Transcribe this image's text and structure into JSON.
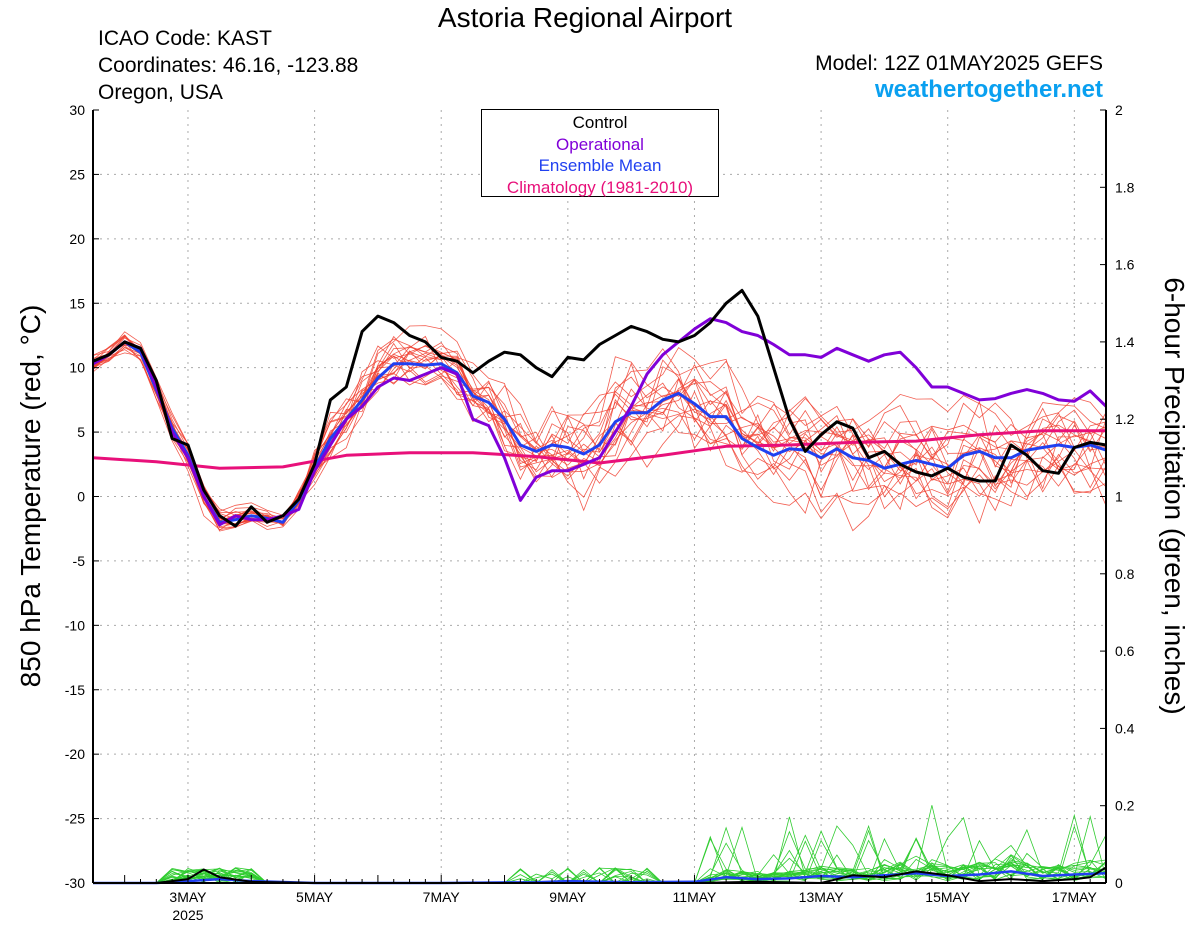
{
  "header": {
    "title": "Astoria Regional Airport",
    "icao": "ICAO Code: KAST",
    "coordinates": "Coordinates: 46.16, -123.88",
    "region": "Oregon, USA",
    "model": "Model: 12Z 01MAY2025 GEFS",
    "website": "weathertogether.net"
  },
  "legend": {
    "control": "Control",
    "operational": "Operational",
    "ensemble_mean": "Ensemble Mean",
    "climatology": "Climatology (1981-2010)"
  },
  "colors": {
    "control": "#000000",
    "operational": "#8000d8",
    "ensemble_mean": "#2040f0",
    "climatology": "#e8107a",
    "members": "#f04030",
    "precip": "#30cc30",
    "website": "#0aa0f0"
  },
  "chart_data": {
    "type": "line",
    "ylabel": "850 hPa Temperature (red, °C)",
    "y2label": "6-hour Precipitation (green, inches)",
    "ylim": [
      -30,
      30
    ],
    "y2lim": [
      0,
      2
    ],
    "yticks": [
      30,
      25,
      20,
      15,
      10,
      5,
      0,
      -5,
      -10,
      -15,
      -20,
      -25,
      -30
    ],
    "y2ticks": [
      "2",
      "1.8",
      "1.6",
      "1.4",
      "1.2",
      "1",
      "0.8",
      "0.6",
      "0.4",
      "0.2",
      "0"
    ],
    "xlim_day": [
      1.5,
      17.5
    ],
    "x_ticks": [
      {
        "day": 3,
        "label": "3MAY",
        "sub": "2025"
      },
      {
        "day": 5,
        "label": "5MAY"
      },
      {
        "day": 7,
        "label": "7MAY"
      },
      {
        "day": 9,
        "label": "9MAY"
      },
      {
        "day": 11,
        "label": "11MAY"
      },
      {
        "day": 13,
        "label": "13MAY"
      },
      {
        "day": 15,
        "label": "15MAY"
      },
      {
        "day": 17,
        "label": "17MAY"
      }
    ],
    "grid": true,
    "series": [
      {
        "key": "climatology",
        "name": "Climatology (1981-2010)",
        "axis": "left",
        "x": [
          1.5,
          2.5,
          3.5,
          4.5,
          5.5,
          6.5,
          7.5,
          8.5,
          9.5,
          10.5,
          11.5,
          12.5,
          13.5,
          14.5,
          15.5,
          16.5,
          17.5
        ],
        "y": [
          3.0,
          2.7,
          2.2,
          2.3,
          3.2,
          3.4,
          3.4,
          3.1,
          2.6,
          3.2,
          3.9,
          4.0,
          4.2,
          4.3,
          4.8,
          5.1,
          5.1
        ]
      },
      {
        "key": "ensemble_mean",
        "name": "Ensemble Mean",
        "axis": "left",
        "x": [
          1.5,
          1.75,
          2.0,
          2.25,
          2.5,
          2.75,
          3.0,
          3.25,
          3.5,
          3.75,
          4.0,
          4.25,
          4.5,
          4.75,
          5.0,
          5.25,
          5.5,
          5.75,
          6.0,
          6.25,
          6.5,
          6.75,
          7.0,
          7.25,
          7.5,
          7.75,
          8.0,
          8.25,
          8.5,
          8.75,
          9.0,
          9.25,
          9.5,
          9.75,
          10.0,
          10.25,
          10.5,
          10.75,
          11.0,
          11.25,
          11.5,
          11.75,
          12.0,
          12.25,
          12.5,
          12.75,
          13.0,
          13.25,
          13.5,
          13.75,
          14.0,
          14.25,
          14.5,
          14.75,
          15.0,
          15.25,
          15.5,
          15.75,
          16.0,
          16.25,
          16.5,
          16.75,
          17.0,
          17.25,
          17.5
        ],
        "y": [
          10.3,
          11.0,
          12.0,
          11.2,
          8.3,
          5.3,
          3.2,
          0.0,
          -2.0,
          -1.8,
          -1.5,
          -1.7,
          -2.0,
          -0.3,
          2.2,
          4.5,
          6.0,
          7.5,
          9.2,
          10.3,
          10.3,
          10.2,
          10.3,
          9.6,
          7.8,
          7.3,
          6.0,
          4.0,
          3.5,
          4.0,
          3.8,
          3.3,
          4.0,
          5.8,
          6.5,
          6.5,
          7.5,
          8.0,
          7.2,
          6.2,
          6.2,
          4.5,
          3.8,
          3.2,
          3.7,
          3.6,
          3.0,
          3.7,
          3.0,
          2.8,
          2.2,
          2.5,
          2.8,
          2.5,
          2.2,
          3.2,
          3.5,
          3.0,
          3.0,
          3.6,
          3.8,
          4.0,
          3.8,
          4.0,
          3.6
        ]
      },
      {
        "key": "operational",
        "name": "Operational",
        "axis": "left",
        "x": [
          1.5,
          1.75,
          2.0,
          2.25,
          2.5,
          2.75,
          3.0,
          3.25,
          3.5,
          3.75,
          4.0,
          4.25,
          4.5,
          4.75,
          5.0,
          5.25,
          5.5,
          5.75,
          6.0,
          6.25,
          6.5,
          6.75,
          7.0,
          7.25,
          7.5,
          7.75,
          8.0,
          8.25,
          8.5,
          8.75,
          9.0,
          9.25,
          9.5,
          9.75,
          10.0,
          10.25,
          10.5,
          10.75,
          11.0,
          11.25,
          11.5,
          11.75,
          12.0,
          12.25,
          12.5,
          12.75,
          13.0,
          13.25,
          13.5,
          13.75,
          14.0,
          14.25,
          14.5,
          14.75,
          15.0,
          15.25,
          15.5,
          15.75,
          16.0,
          16.25,
          16.5,
          16.75,
          17.0,
          17.25,
          17.5
        ],
        "y": [
          10.3,
          11.0,
          12.0,
          11.5,
          8.5,
          5.0,
          3.0,
          0.0,
          -2.2,
          -1.5,
          -1.8,
          -1.8,
          -1.5,
          -1.0,
          2.0,
          4.0,
          6.0,
          7.0,
          8.5,
          9.2,
          9.0,
          9.5,
          10.0,
          9.5,
          6.0,
          5.5,
          3.0,
          -0.3,
          1.5,
          2.0,
          2.0,
          2.5,
          3.0,
          5.0,
          7.0,
          9.5,
          11.0,
          12.0,
          13.0,
          13.8,
          13.5,
          12.8,
          12.5,
          11.8,
          11.0,
          11.0,
          10.8,
          11.5,
          11.0,
          10.5,
          11.0,
          11.2,
          10.0,
          8.5,
          8.5,
          8.0,
          7.5,
          7.6,
          8.0,
          8.3,
          8.0,
          7.5,
          7.4,
          8.2,
          7.0
        ]
      },
      {
        "key": "control",
        "name": "Control",
        "axis": "left",
        "x": [
          1.5,
          1.75,
          2.0,
          2.25,
          2.5,
          2.75,
          3.0,
          3.25,
          3.5,
          3.75,
          4.0,
          4.25,
          4.5,
          4.75,
          5.0,
          5.25,
          5.5,
          5.75,
          6.0,
          6.25,
          6.5,
          6.75,
          7.0,
          7.25,
          7.5,
          7.75,
          8.0,
          8.25,
          8.5,
          8.75,
          9.0,
          9.25,
          9.5,
          9.75,
          10.0,
          10.25,
          10.5,
          10.75,
          11.0,
          11.25,
          11.5,
          11.75,
          12.0,
          12.25,
          12.5,
          12.75,
          13.0,
          13.25,
          13.5,
          13.75,
          14.0,
          14.25,
          14.5,
          14.75,
          15.0,
          15.25,
          15.5,
          15.75,
          16.0,
          16.25,
          16.5,
          16.75,
          17.0,
          17.25,
          17.5
        ],
        "y": [
          10.5,
          11.0,
          12.0,
          11.5,
          9.0,
          4.5,
          4.0,
          0.5,
          -1.5,
          -2.3,
          -0.8,
          -2.0,
          -1.5,
          -0.2,
          2.5,
          7.5,
          8.5,
          12.8,
          14.0,
          13.5,
          12.5,
          12.0,
          10.8,
          10.5,
          9.6,
          10.5,
          11.2,
          11.0,
          10.0,
          9.3,
          10.8,
          10.6,
          11.8,
          12.5,
          13.2,
          12.8,
          12.2,
          12.0,
          12.5,
          13.5,
          15.0,
          16.0,
          14.0,
          10.0,
          6.0,
          3.5,
          4.8,
          5.8,
          5.3,
          3.0,
          3.5,
          2.5,
          1.9,
          1.6,
          2.2,
          1.5,
          1.2,
          1.2,
          4.0,
          3.2,
          2.0,
          1.8,
          3.8,
          4.2,
          4.0
        ]
      },
      {
        "key": "precip_mean",
        "name": "Ensemble Mean",
        "axis": "right",
        "x": [
          1.5,
          2.5,
          3.0,
          3.5,
          4.0,
          5.0,
          7.0,
          8.5,
          9.0,
          10.0,
          11.0,
          11.5,
          12.0,
          12.5,
          13.0,
          13.5,
          14.0,
          14.5,
          15.0,
          15.5,
          16.0,
          16.5,
          17.0,
          17.5
        ],
        "y": [
          0,
          0,
          0.005,
          0.01,
          0.005,
          0,
          0,
          0.002,
          0.005,
          0.002,
          0.003,
          0.015,
          0.01,
          0.012,
          0.018,
          0.015,
          0.02,
          0.025,
          0.018,
          0.022,
          0.03,
          0.018,
          0.022,
          0.025
        ]
      },
      {
        "key": "precip_control",
        "name": "Control",
        "axis": "right",
        "x": [
          1.5,
          2.5,
          2.75,
          3.0,
          3.25,
          3.5,
          4.0,
          5.0,
          9.0,
          11.0,
          12.0,
          13.0,
          13.5,
          14.0,
          14.5,
          15.0,
          15.5,
          16.0,
          16.5,
          17.0,
          17.25,
          17.5
        ],
        "y": [
          0,
          0,
          0.005,
          0.01,
          0.035,
          0.015,
          0.003,
          0,
          0,
          0,
          0.003,
          0,
          0.02,
          0.015,
          0.03,
          0.02,
          0.005,
          0.01,
          0.005,
          0.01,
          0.015,
          0.04
        ]
      }
    ]
  }
}
